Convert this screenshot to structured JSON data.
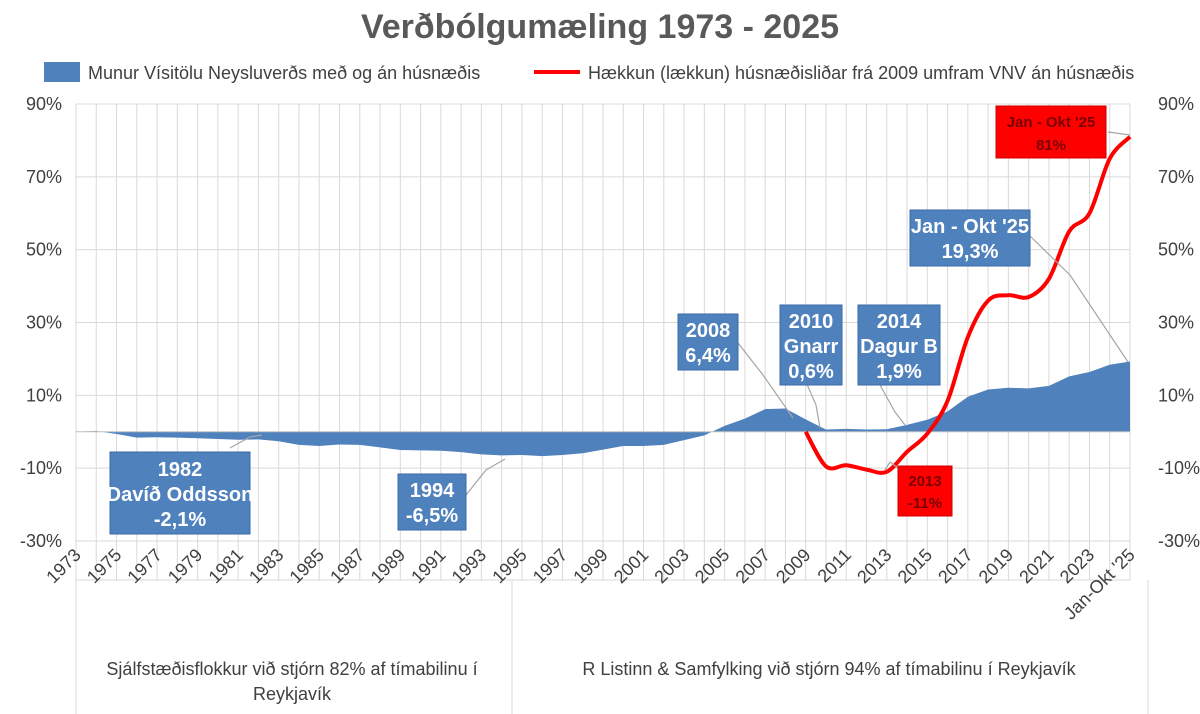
{
  "chart_data": {
    "type": "area+line",
    "title": "Verðbólgumæling 1973 - 2025",
    "legend": [
      {
        "label": "Munur Vísitölu Neysluverðs með og án húsnæðis",
        "color": "#4f81bd",
        "kind": "area"
      },
      {
        "label": "Hækkun (lækkun) húsnæðisliðar frá 2009 umfram VNV án húsnæðis",
        "color": "#ff0000",
        "kind": "line"
      }
    ],
    "y_axis": {
      "min": -30,
      "max": 90,
      "ticks": [
        90,
        70,
        50,
        30,
        10,
        -10,
        -30
      ],
      "tick_labels": [
        "90%",
        "70%",
        "50%",
        "30%",
        "10%",
        "-10%",
        "-30%"
      ]
    },
    "x_tick_labels": [
      "1973",
      "1975",
      "1977",
      "1979",
      "1981",
      "1983",
      "1985",
      "1987",
      "1989",
      "1991",
      "1993",
      "1995",
      "1997",
      "1999",
      "2001",
      "2003",
      "2005",
      "2007",
      "2009",
      "2011",
      "2013",
      "2015",
      "2017",
      "2019",
      "2021",
      "2023",
      "Jan-Okt '25"
    ],
    "series_area": {
      "name": "Munur Vísitölu Neysluverðs með og án húsnæðis",
      "points": [
        [
          1973,
          0
        ],
        [
          1974,
          0.2
        ],
        [
          1975,
          -0.6
        ],
        [
          1976,
          -1.6
        ],
        [
          1977,
          -1.5
        ],
        [
          1978,
          -1.6
        ],
        [
          1979,
          -1.8
        ],
        [
          1980,
          -2.0
        ],
        [
          1981,
          -2.2
        ],
        [
          1982,
          -2.1
        ],
        [
          1983,
          -2.6
        ],
        [
          1984,
          -3.6
        ],
        [
          1985,
          -3.9
        ],
        [
          1986,
          -3.5
        ],
        [
          1987,
          -3.6
        ],
        [
          1988,
          -4.3
        ],
        [
          1989,
          -5.0
        ],
        [
          1990,
          -5.1
        ],
        [
          1991,
          -5.2
        ],
        [
          1992,
          -5.6
        ],
        [
          1993,
          -6.2
        ],
        [
          1994,
          -6.5
        ],
        [
          1995,
          -6.4
        ],
        [
          1996,
          -6.7
        ],
        [
          1997,
          -6.4
        ],
        [
          1998,
          -5.9
        ],
        [
          1999,
          -4.9
        ],
        [
          2000,
          -3.9
        ],
        [
          2001,
          -3.9
        ],
        [
          2002,
          -3.6
        ],
        [
          2003,
          -2.3
        ],
        [
          2004,
          -1.0
        ],
        [
          2005,
          1.6
        ],
        [
          2006,
          3.6
        ],
        [
          2007,
          6.2
        ],
        [
          2008,
          6.4
        ],
        [
          2009,
          3.4
        ],
        [
          2010,
          0.6
        ],
        [
          2011,
          0.8
        ],
        [
          2012,
          0.6
        ],
        [
          2013,
          0.7
        ],
        [
          2014,
          1.9
        ],
        [
          2015,
          3.3
        ],
        [
          2016,
          5.6
        ],
        [
          2017,
          9.6
        ],
        [
          2018,
          11.6
        ],
        [
          2019,
          12.1
        ],
        [
          2020,
          11.9
        ],
        [
          2021,
          12.6
        ],
        [
          2022,
          15.2
        ],
        [
          2023,
          16.4
        ],
        [
          2024,
          18.4
        ],
        [
          2025,
          19.3
        ]
      ]
    },
    "series_line": {
      "name": "Hækkun (lækkun) húsnæðisliðar frá 2009 umfram VNV án húsnæðis",
      "points": [
        [
          2009,
          0
        ],
        [
          2010,
          -9.5
        ],
        [
          2011,
          -9.2
        ],
        [
          2012,
          -10.4
        ],
        [
          2013,
          -11
        ],
        [
          2014,
          -5.5
        ],
        [
          2015,
          -0.5
        ],
        [
          2016,
          8.5
        ],
        [
          2017,
          26
        ],
        [
          2018,
          36
        ],
        [
          2019,
          37.5
        ],
        [
          2020,
          37
        ],
        [
          2021,
          42
        ],
        [
          2022,
          55
        ],
        [
          2023,
          60
        ],
        [
          2024,
          75
        ],
        [
          2025,
          81
        ]
      ]
    },
    "annotations": {
      "a1982": {
        "line1": "1982",
        "line2": "Davíð Oddsson",
        "line3": "-2,1%"
      },
      "a1994": {
        "line1": "1994",
        "line2": "-6,5%"
      },
      "a2008": {
        "line1": "2008",
        "line2": "6,4%"
      },
      "a2010": {
        "line1": "2010",
        "line2": "Gnarr",
        "line3": "0,6%"
      },
      "a2014": {
        "line1": "2014",
        "line2": "Dagur B",
        "line3": "1,9%"
      },
      "a2025blue": {
        "line1": "Jan - Okt '25",
        "line2": "19,3%"
      },
      "a2025red": {
        "line1": "Jan - Okt '25",
        "line2": "81%"
      },
      "a2013red": {
        "line1": "2013",
        "line2": "-11%"
      }
    },
    "bottom_labels": {
      "left": {
        "line1": "Sjálfstæðisflokkur við stjórn 82% af tímabilinu í",
        "line2": "Reykjavík"
      },
      "right": "R Listinn & Samfylking við stjórn 94% af tímabilinu í Reykjavík"
    }
  }
}
